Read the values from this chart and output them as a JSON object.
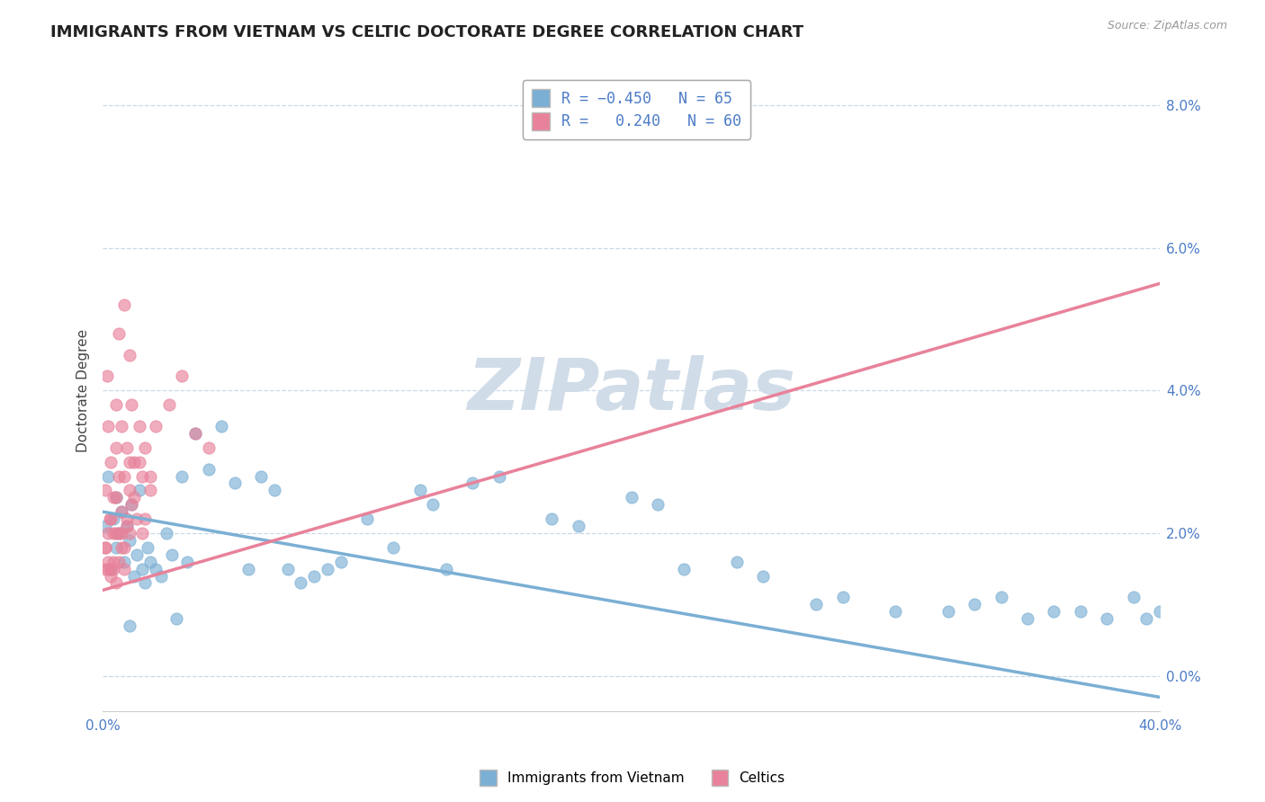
{
  "title": "IMMIGRANTS FROM VIETNAM VS CELTIC DOCTORATE DEGREE CORRELATION CHART",
  "source_text": "Source: ZipAtlas.com",
  "ylabel": "Doctorate Degree",
  "legend_label1": "Immigrants from Vietnam",
  "legend_label2": "Celtics",
  "blue_color": "#7bafd4",
  "pink_color": "#e8829a",
  "blue_scatter": [
    [
      0.1,
      2.1
    ],
    [
      0.2,
      2.8
    ],
    [
      0.3,
      1.5
    ],
    [
      0.4,
      2.2
    ],
    [
      0.5,
      2.5
    ],
    [
      0.5,
      1.8
    ],
    [
      0.6,
      2.0
    ],
    [
      0.7,
      2.3
    ],
    [
      0.8,
      1.6
    ],
    [
      0.9,
      2.1
    ],
    [
      1.0,
      1.9
    ],
    [
      1.1,
      2.4
    ],
    [
      1.2,
      1.4
    ],
    [
      1.3,
      1.7
    ],
    [
      1.4,
      2.6
    ],
    [
      1.5,
      1.5
    ],
    [
      1.6,
      1.3
    ],
    [
      1.7,
      1.8
    ],
    [
      1.8,
      1.6
    ],
    [
      2.0,
      1.5
    ],
    [
      2.2,
      1.4
    ],
    [
      2.4,
      2.0
    ],
    [
      2.6,
      1.7
    ],
    [
      3.0,
      2.8
    ],
    [
      3.2,
      1.6
    ],
    [
      3.5,
      3.4
    ],
    [
      4.0,
      2.9
    ],
    [
      4.5,
      3.5
    ],
    [
      5.0,
      2.7
    ],
    [
      5.5,
      1.5
    ],
    [
      6.0,
      2.8
    ],
    [
      6.5,
      2.6
    ],
    [
      7.0,
      1.5
    ],
    [
      7.5,
      1.3
    ],
    [
      8.0,
      1.4
    ],
    [
      8.5,
      1.5
    ],
    [
      9.0,
      1.6
    ],
    [
      10.0,
      2.2
    ],
    [
      11.0,
      1.8
    ],
    [
      12.0,
      2.6
    ],
    [
      12.5,
      2.4
    ],
    [
      13.0,
      1.5
    ],
    [
      14.0,
      2.7
    ],
    [
      15.0,
      2.8
    ],
    [
      17.0,
      2.2
    ],
    [
      18.0,
      2.1
    ],
    [
      20.0,
      2.5
    ],
    [
      21.0,
      2.4
    ],
    [
      22.0,
      1.5
    ],
    [
      24.0,
      1.6
    ],
    [
      25.0,
      1.4
    ],
    [
      27.0,
      1.0
    ],
    [
      28.0,
      1.1
    ],
    [
      30.0,
      0.9
    ],
    [
      32.0,
      0.9
    ],
    [
      33.0,
      1.0
    ],
    [
      34.0,
      1.1
    ],
    [
      35.0,
      0.8
    ],
    [
      36.0,
      0.9
    ],
    [
      37.0,
      0.9
    ],
    [
      38.0,
      0.8
    ],
    [
      39.0,
      1.1
    ],
    [
      39.5,
      0.8
    ],
    [
      40.0,
      0.9
    ],
    [
      1.0,
      0.7
    ],
    [
      2.8,
      0.8
    ]
  ],
  "pink_scatter": [
    [
      0.1,
      1.8
    ],
    [
      0.2,
      1.5
    ],
    [
      0.3,
      2.2
    ],
    [
      0.3,
      3.0
    ],
    [
      0.4,
      2.5
    ],
    [
      0.4,
      1.6
    ],
    [
      0.5,
      3.8
    ],
    [
      0.5,
      2.0
    ],
    [
      0.6,
      4.8
    ],
    [
      0.6,
      2.8
    ],
    [
      0.7,
      3.5
    ],
    [
      0.7,
      2.3
    ],
    [
      0.8,
      5.2
    ],
    [
      0.8,
      1.8
    ],
    [
      0.9,
      3.2
    ],
    [
      0.9,
      2.1
    ],
    [
      1.0,
      4.5
    ],
    [
      1.0,
      2.6
    ],
    [
      1.1,
      3.8
    ],
    [
      1.1,
      2.4
    ],
    [
      1.2,
      3.0
    ],
    [
      1.3,
      2.2
    ],
    [
      1.4,
      3.5
    ],
    [
      1.5,
      2.8
    ],
    [
      1.6,
      3.2
    ],
    [
      1.8,
      2.6
    ],
    [
      0.1,
      2.6
    ],
    [
      0.2,
      3.5
    ],
    [
      0.15,
      4.2
    ],
    [
      0.25,
      2.2
    ],
    [
      0.3,
      1.5
    ],
    [
      0.4,
      2.0
    ],
    [
      0.5,
      2.5
    ],
    [
      0.6,
      2.0
    ],
    [
      0.7,
      1.8
    ],
    [
      0.8,
      2.8
    ],
    [
      0.9,
      2.2
    ],
    [
      1.0,
      2.0
    ],
    [
      1.2,
      2.5
    ],
    [
      1.4,
      3.0
    ],
    [
      1.6,
      2.2
    ],
    [
      1.8,
      2.8
    ],
    [
      2.0,
      3.5
    ],
    [
      2.5,
      3.8
    ],
    [
      3.0,
      4.2
    ],
    [
      0.1,
      1.5
    ],
    [
      0.1,
      1.8
    ],
    [
      0.2,
      1.6
    ],
    [
      0.2,
      2.0
    ],
    [
      0.3,
      1.4
    ],
    [
      0.4,
      1.5
    ],
    [
      0.5,
      1.3
    ],
    [
      0.6,
      1.6
    ],
    [
      3.5,
      3.4
    ],
    [
      4.0,
      3.2
    ],
    [
      1.5,
      2.0
    ],
    [
      0.7,
      2.0
    ],
    [
      1.0,
      3.0
    ],
    [
      0.8,
      1.5
    ],
    [
      0.5,
      3.2
    ]
  ],
  "xlim": [
    0.0,
    40.0
  ],
  "ylim": [
    -0.5,
    8.5
  ],
  "ytick_vals": [
    0.0,
    2.0,
    4.0,
    6.0,
    8.0
  ],
  "ytick_labels": [
    "0.0%",
    "2.0%",
    "4.0%",
    "6.0%",
    "8.0%"
  ],
  "blue_trend": [
    2.3,
    -0.3
  ],
  "pink_trend": [
    1.2,
    5.5
  ],
  "title_fontsize": 13,
  "tick_fontsize": 11,
  "grid_color": "#c8d8e8",
  "tick_color": "#4d7cc7",
  "background_color": "#ffffff",
  "watermark_color": "#d0dce8"
}
